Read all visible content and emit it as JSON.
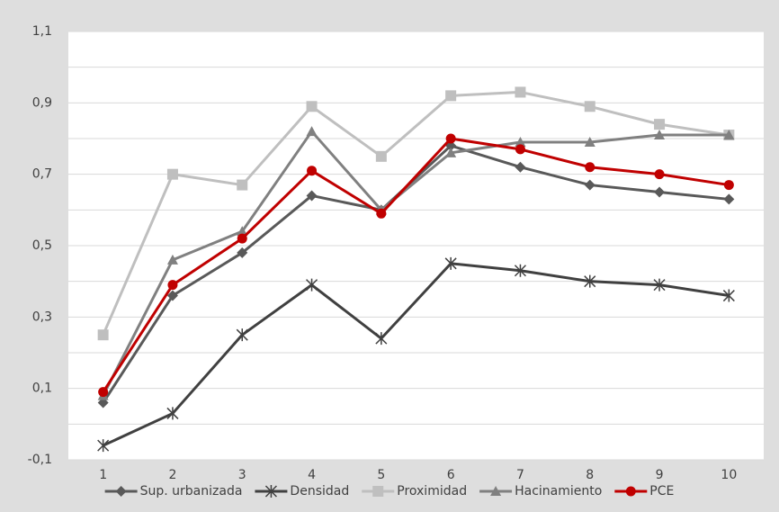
{
  "chart_data": {
    "type": "line",
    "categories": [
      "1",
      "2",
      "3",
      "4",
      "5",
      "6",
      "7",
      "8",
      "9",
      "10"
    ],
    "series": [
      {
        "name": "Sup. urbanizada",
        "color": "#595959",
        "marker": "diamond",
        "values": [
          0.06,
          0.36,
          0.48,
          0.64,
          0.6,
          0.78,
          0.72,
          0.67,
          0.65,
          0.63
        ]
      },
      {
        "name": "Densidad",
        "color": "#404040",
        "marker": "star",
        "values": [
          -0.06,
          0.03,
          0.25,
          0.39,
          0.24,
          0.45,
          0.43,
          0.4,
          0.39,
          0.36
        ]
      },
      {
        "name": "Proximidad",
        "color": "#bfbfbf",
        "marker": "square",
        "values": [
          0.25,
          0.7,
          0.67,
          0.89,
          0.75,
          0.92,
          0.93,
          0.89,
          0.84,
          0.81
        ]
      },
      {
        "name": "Hacinamiento",
        "color": "#808080",
        "marker": "triangle",
        "values": [
          0.08,
          0.46,
          0.54,
          0.82,
          0.6,
          0.76,
          0.79,
          0.79,
          0.81,
          0.81
        ]
      },
      {
        "name": "PCE",
        "color": "#c00000",
        "marker": "circle",
        "values": [
          0.09,
          0.39,
          0.52,
          0.71,
          0.59,
          0.8,
          0.77,
          0.72,
          0.7,
          0.67
        ]
      }
    ],
    "ylim": [
      -0.1,
      1.1
    ],
    "yticks": [
      {
        "value": -0.1,
        "label": "-0,1"
      },
      {
        "value": 0.1,
        "label": "0,1"
      },
      {
        "value": 0.3,
        "label": "0,3"
      },
      {
        "value": 0.5,
        "label": "0,5"
      },
      {
        "value": 0.7,
        "label": "0,7"
      },
      {
        "value": 0.9,
        "label": "0,9"
      },
      {
        "value": 1.1,
        "label": "1,1"
      }
    ],
    "yminorticks": [
      0,
      0.2,
      0.4,
      0.6,
      0.8,
      1.0
    ],
    "grid": true,
    "legend": "bottom"
  }
}
